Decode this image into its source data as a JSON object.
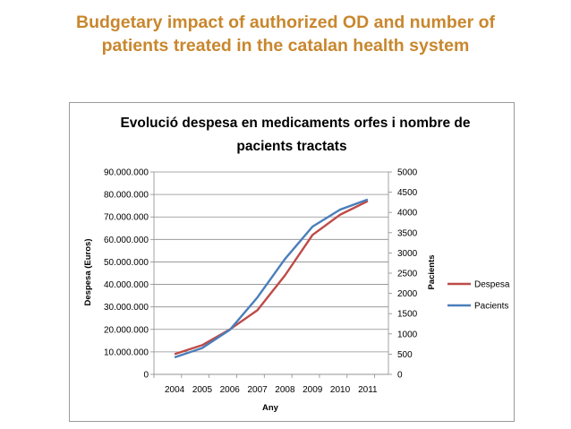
{
  "slide": {
    "title_line1": "Budgetary impact of authorized OD and number of",
    "title_line2": "patients treated in the catalan health system",
    "title_color": "#c8872e"
  },
  "chart_data": {
    "type": "line",
    "title_line1": "Evolució despesa en medicaments orfes i nombre de",
    "title_line2": "pacients tractats",
    "xlabel": "Any",
    "ylabel_left": "Despesa (Euros)",
    "ylabel_right": "Pacients",
    "categories": [
      "2004",
      "2005",
      "2006",
      "2007",
      "2008",
      "2009",
      "2010",
      "2011"
    ],
    "ylim_left": [
      0,
      90000000
    ],
    "ylim_right": [
      0,
      5000
    ],
    "yticks_left": [
      "0",
      "10.000.000",
      "20.000.000",
      "30.000.000",
      "40.000.000",
      "50.000.000",
      "60.000.000",
      "70.000.000",
      "80.000.000",
      "90.000.000"
    ],
    "yticks_right": [
      "0",
      "500",
      "1000",
      "1500",
      "2000",
      "2500",
      "3000",
      "3500",
      "4000",
      "4500",
      "5000"
    ],
    "grid": true,
    "legend_position": "right",
    "series": [
      {
        "name": "Despesa",
        "axis": "left",
        "color": "#be4b48",
        "values": [
          9000000,
          13000000,
          20000000,
          28500000,
          44000000,
          62000000,
          71000000,
          77000000
        ]
      },
      {
        "name": "Pacients",
        "axis": "right",
        "color": "#4a7ebb",
        "values": [
          420,
          650,
          1100,
          1900,
          2850,
          3650,
          4070,
          4320
        ]
      }
    ]
  }
}
